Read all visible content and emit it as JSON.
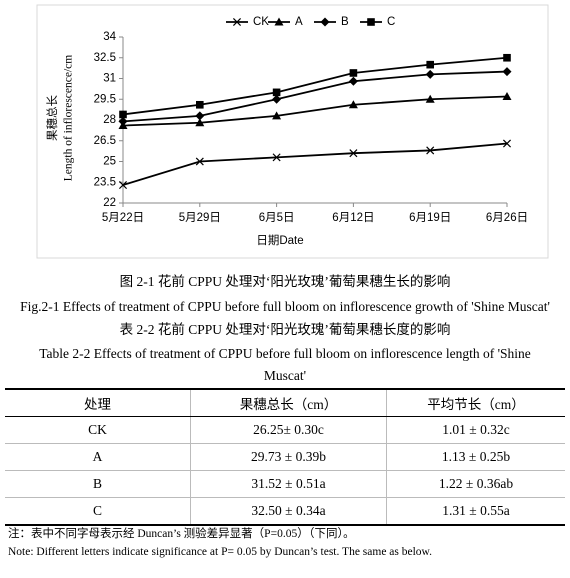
{
  "chart_data": {
    "type": "line",
    "legend": "top",
    "categories": [
      "5月22日",
      "5月29日",
      "6月5日",
      "6月12日",
      "6月19日",
      "6月26日"
    ],
    "series": [
      {
        "name": "CK",
        "marker": "x",
        "color": "#000000",
        "values": [
          23.3,
          25.0,
          25.3,
          25.6,
          25.8,
          26.3
        ]
      },
      {
        "name": "A",
        "marker": "triangle",
        "color": "#000000",
        "values": [
          27.6,
          27.8,
          28.3,
          29.1,
          29.5,
          29.7
        ]
      },
      {
        "name": "B",
        "marker": "diamond",
        "color": "#000000",
        "values": [
          27.9,
          28.3,
          29.5,
          30.8,
          31.3,
          31.5
        ]
      },
      {
        "name": "C",
        "marker": "square",
        "color": "#000000",
        "values": [
          28.4,
          29.1,
          30.0,
          31.4,
          32.0,
          32.5
        ]
      }
    ],
    "ylim": [
      22,
      34
    ],
    "yticks": [
      22,
      23.5,
      25,
      26.5,
      28,
      29.5,
      31,
      32.5,
      34
    ],
    "ylabel_cn": "果穗总长",
    "ylabel_en": "Length of inflorescence/cm",
    "xlabel": "日期Date"
  },
  "figure_caption": {
    "cn": "图 2-1  花前 CPPU 处理对‘阳光玫瑰’葡萄果穗生长的影响",
    "en": "Fig.2-1 Effects of treatment of CPPU before full bloom on inflorescence growth of 'Shine Muscat'"
  },
  "table": {
    "caption_cn": "表 2-2  花前 CPPU 处理对‘阳光玫瑰’葡萄果穗长度的影响",
    "caption_en": "Table 2-2 Effects of treatment of CPPU before full bloom on inflorescence length of 'Shine Muscat'",
    "header": [
      "处理",
      "果穗总长（cm）",
      "平均节长（cm）"
    ],
    "rows": [
      [
        "CK",
        "26.25± 0.30c",
        "1.01 ± 0.32c"
      ],
      [
        "A",
        "29.73 ± 0.39b",
        "1.13 ± 0.25b"
      ],
      [
        "B",
        "31.52 ± 0.51a",
        "1.22 ± 0.36ab"
      ],
      [
        "C",
        "32.50 ± 0.34a",
        "1.31 ± 0.55a"
      ]
    ]
  },
  "notes": [
    "注：表中不同字母表示经  Duncan’s 测验差异显著（P=0.05）（下同）。",
    "Note: Different letters indicate significance at P= 0.05 by Duncan’s test. The same as below."
  ]
}
